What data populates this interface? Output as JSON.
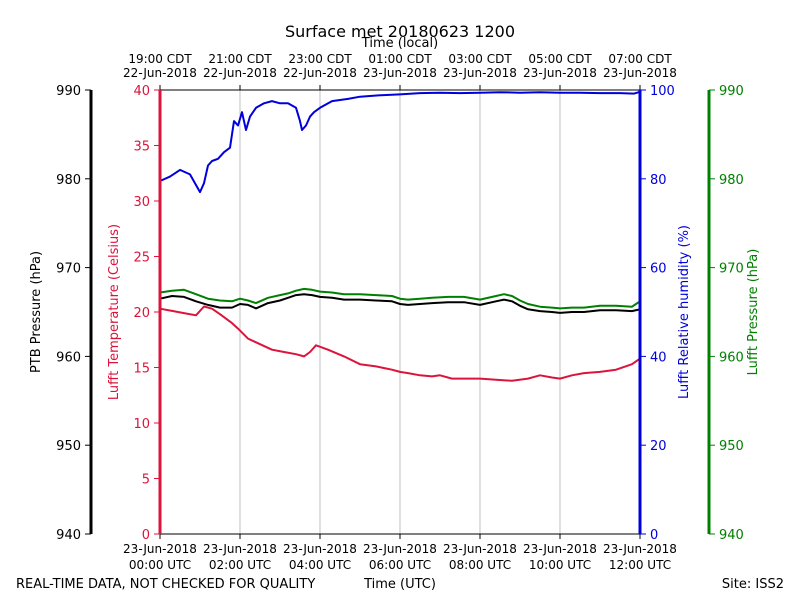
{
  "chart_data": {
    "type": "line",
    "title": "Surface met 20180623 1200",
    "top_axis_label": "Time (local)",
    "x_axis_label": "Time (UTC)",
    "footer_left": "REAL-TIME DATA, NOT CHECKED FOR QUALITY",
    "footer_right": "Site: ISS2",
    "xlim_hours_utc": [
      0,
      12
    ],
    "grid": "vertical",
    "bottom_ticks": [
      {
        "hour": 0,
        "date": "23-Jun-2018",
        "time": "00:00 UTC"
      },
      {
        "hour": 2,
        "date": "23-Jun-2018",
        "time": "02:00 UTC"
      },
      {
        "hour": 4,
        "date": "23-Jun-2018",
        "time": "04:00 UTC"
      },
      {
        "hour": 6,
        "date": "23-Jun-2018",
        "time": "06:00 UTC"
      },
      {
        "hour": 8,
        "date": "23-Jun-2018",
        "time": "08:00 UTC"
      },
      {
        "hour": 10,
        "date": "23-Jun-2018",
        "time": "10:00 UTC"
      },
      {
        "hour": 12,
        "date": "23-Jun-2018",
        "time": "12:00 UTC"
      }
    ],
    "top_ticks": [
      {
        "hour": 0,
        "time": "19:00 CDT",
        "date": "22-Jun-2018"
      },
      {
        "hour": 2,
        "time": "21:00 CDT",
        "date": "22-Jun-2018"
      },
      {
        "hour": 4,
        "time": "23:00 CDT",
        "date": "22-Jun-2018"
      },
      {
        "hour": 6,
        "time": "01:00 CDT",
        "date": "23-Jun-2018"
      },
      {
        "hour": 8,
        "time": "03:00 CDT",
        "date": "23-Jun-2018"
      },
      {
        "hour": 10,
        "time": "05:00 CDT",
        "date": "23-Jun-2018"
      },
      {
        "hour": 12,
        "time": "07:00 CDT",
        "date": "23-Jun-2018"
      }
    ],
    "axes": {
      "ptb": {
        "label": "PTB Pressure (hPa)",
        "ylim": [
          940,
          990
        ],
        "ticks": [
          940,
          950,
          960,
          970,
          980,
          990
        ],
        "color": "#000000"
      },
      "temp": {
        "label": "Lufft Temperature (Celsius)",
        "ylim": [
          0,
          40
        ],
        "ticks": [
          0,
          5,
          10,
          15,
          20,
          25,
          30,
          35,
          40
        ],
        "color": "#dc143c"
      },
      "rh": {
        "label": "Lufft Relative humidity (%)",
        "ylim": [
          0,
          100
        ],
        "ticks": [
          0,
          20,
          40,
          60,
          80,
          100
        ],
        "color": "#0000dd"
      },
      "lufft_p": {
        "label": "Lufft Pressure (hPa)",
        "ylim": [
          940,
          990
        ],
        "ticks": [
          940,
          950,
          960,
          970,
          980,
          990
        ],
        "color": "#008000"
      }
    },
    "series": [
      {
        "name": "Lufft Relative humidity",
        "axis": "rh",
        "color": "#0000dd",
        "x": [
          0,
          0.25,
          0.5,
          0.75,
          1.0,
          1.1,
          1.2,
          1.3,
          1.45,
          1.6,
          1.75,
          1.85,
          1.95,
          2.05,
          2.15,
          2.25,
          2.4,
          2.6,
          2.8,
          3.0,
          3.2,
          3.4,
          3.5,
          3.55,
          3.65,
          3.75,
          3.85,
          4.0,
          4.3,
          4.7,
          5.0,
          5.5,
          6.0,
          6.5,
          7.0,
          7.5,
          8.0,
          8.5,
          9.0,
          9.5,
          10.0,
          10.5,
          11.0,
          11.5,
          11.85,
          12.0
        ],
        "y": [
          79.5,
          80.5,
          82,
          81,
          77,
          79,
          83,
          84,
          84.5,
          86,
          87,
          93,
          92,
          95,
          91,
          94,
          96,
          97,
          97.5,
          97,
          97,
          96,
          93,
          91,
          92,
          94,
          95,
          96,
          97.5,
          98,
          98.5,
          98.8,
          99,
          99.3,
          99.4,
          99.3,
          99.4,
          99.5,
          99.4,
          99.5,
          99.4,
          99.4,
          99.3,
          99.3,
          99.2,
          99.6
        ]
      },
      {
        "name": "Lufft Temperature",
        "axis": "temp",
        "color": "#dc143c",
        "x": [
          0,
          0.3,
          0.6,
          0.9,
          1.1,
          1.3,
          1.5,
          1.8,
          1.95,
          2.2,
          2.5,
          2.8,
          3.1,
          3.4,
          3.6,
          3.75,
          3.9,
          4.2,
          4.6,
          5.0,
          5.4,
          5.8,
          6.0,
          6.2,
          6.5,
          6.8,
          7.0,
          7.3,
          7.6,
          8.0,
          8.4,
          8.8,
          9.2,
          9.5,
          9.8,
          10.0,
          10.3,
          10.6,
          11.0,
          11.4,
          11.8,
          12.0
        ],
        "y": [
          20.3,
          20.1,
          19.9,
          19.7,
          20.5,
          20.3,
          19.8,
          19.0,
          18.5,
          17.6,
          17.1,
          16.6,
          16.4,
          16.2,
          16.0,
          16.4,
          17.0,
          16.6,
          16.0,
          15.3,
          15.1,
          14.8,
          14.6,
          14.5,
          14.3,
          14.2,
          14.3,
          14.0,
          14.0,
          14.0,
          13.9,
          13.8,
          14.0,
          14.3,
          14.1,
          14.0,
          14.3,
          14.5,
          14.6,
          14.8,
          15.3,
          15.8
        ]
      },
      {
        "name": "Lufft Pressure",
        "axis": "lufft_p",
        "color": "#008000",
        "x": [
          0,
          0.3,
          0.6,
          0.9,
          1.2,
          1.5,
          1.8,
          2.0,
          2.2,
          2.4,
          2.7,
          3.0,
          3.2,
          3.4,
          3.6,
          3.8,
          4.0,
          4.3,
          4.6,
          5.0,
          5.4,
          5.8,
          6.0,
          6.2,
          6.5,
          6.8,
          7.2,
          7.6,
          8.0,
          8.4,
          8.6,
          8.8,
          9.0,
          9.2,
          9.5,
          9.8,
          10.0,
          10.3,
          10.6,
          11.0,
          11.4,
          11.8,
          12.0
        ],
        "y": [
          967.2,
          967.4,
          967.5,
          967.0,
          966.5,
          966.3,
          966.2,
          966.5,
          966.3,
          966.0,
          966.6,
          966.9,
          967.1,
          967.4,
          967.6,
          967.5,
          967.3,
          967.2,
          967.0,
          967.0,
          966.9,
          966.8,
          966.5,
          966.4,
          966.5,
          966.6,
          966.7,
          966.7,
          966.4,
          966.8,
          967.0,
          966.8,
          966.3,
          965.9,
          965.6,
          965.5,
          965.4,
          965.5,
          965.5,
          965.7,
          965.7,
          965.6,
          966.2
        ]
      },
      {
        "name": "PTB Pressure",
        "axis": "ptb",
        "color": "#000000",
        "x": [
          0,
          0.3,
          0.6,
          0.9,
          1.2,
          1.5,
          1.8,
          2.0,
          2.2,
          2.4,
          2.7,
          3.0,
          3.2,
          3.4,
          3.6,
          3.8,
          4.0,
          4.3,
          4.6,
          5.0,
          5.4,
          5.8,
          6.0,
          6.2,
          6.5,
          6.8,
          7.2,
          7.6,
          8.0,
          8.4,
          8.6,
          8.8,
          9.0,
          9.2,
          9.5,
          9.8,
          10.0,
          10.3,
          10.6,
          11.0,
          11.4,
          11.8,
          12.0
        ],
        "y": [
          966.5,
          966.8,
          966.7,
          966.2,
          965.8,
          965.5,
          965.5,
          965.9,
          965.8,
          965.4,
          966.0,
          966.3,
          966.6,
          966.9,
          967.0,
          966.9,
          966.7,
          966.6,
          966.4,
          966.4,
          966.3,
          966.2,
          965.9,
          965.8,
          965.9,
          966.0,
          966.1,
          966.1,
          965.8,
          966.2,
          966.4,
          966.2,
          965.7,
          965.3,
          965.1,
          965.0,
          964.9,
          965.0,
          965.0,
          965.2,
          965.2,
          965.1,
          965.3
        ]
      }
    ]
  }
}
